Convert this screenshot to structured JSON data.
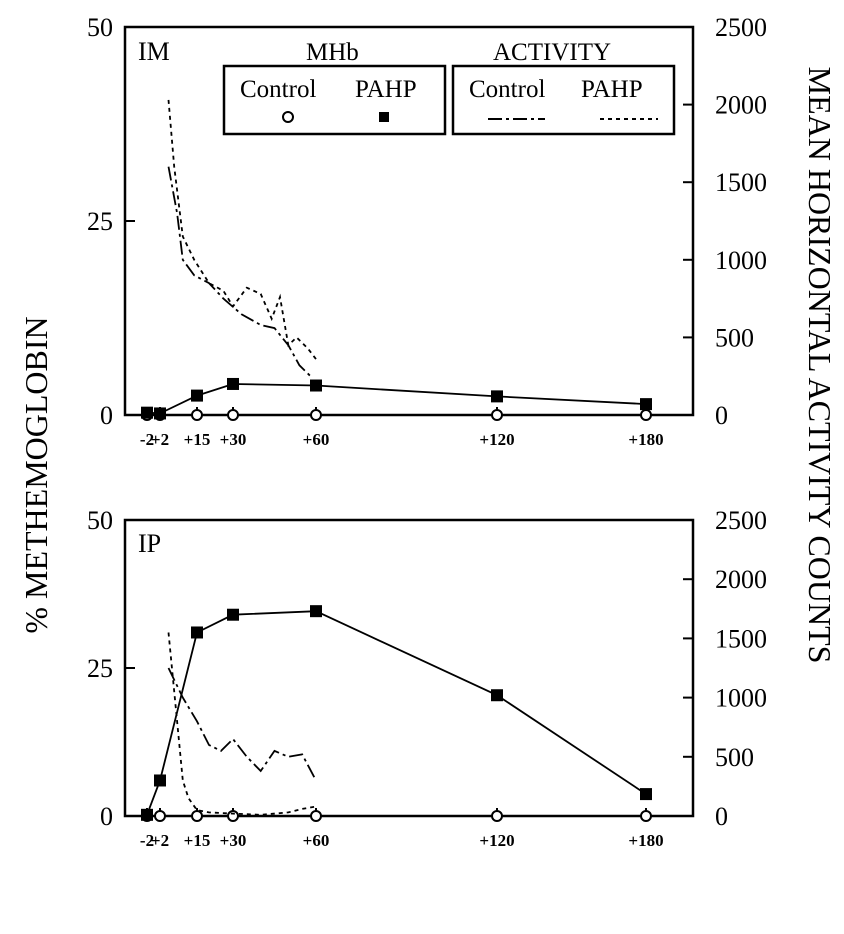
{
  "chart_data": [
    {
      "type": "line",
      "panel_label": "IM",
      "x_ticks": [
        "-2",
        "+2",
        "+15",
        "+30",
        "+60",
        "+120",
        "+180"
      ],
      "x_tick_values": [
        -2,
        2,
        15,
        30,
        60,
        120,
        180
      ],
      "y_left_ticks": [
        "0",
        "25",
        "50"
      ],
      "y_left_range": [
        0,
        50
      ],
      "y_right_ticks": [
        "0",
        "500",
        "1000",
        "1500",
        "2000",
        "2500"
      ],
      "y_right_range": [
        0,
        2500
      ],
      "series": [
        {
          "name": "Control",
          "group": "MHb",
          "axis": "left",
          "marker": "open-circle",
          "x": [
            -2,
            2,
            15,
            30,
            60,
            120,
            180
          ],
          "y": [
            0,
            0,
            0,
            0,
            0,
            0,
            0
          ]
        },
        {
          "name": "PAHP",
          "group": "MHb",
          "axis": "left",
          "marker": "filled-square",
          "x": [
            -2,
            2,
            15,
            30,
            60,
            120,
            180
          ],
          "y": [
            0.3,
            0.2,
            2.5,
            4.0,
            3.8,
            2.4,
            1.4
          ]
        },
        {
          "name": "Control",
          "group": "ACTIVITY",
          "axis": "right",
          "dash": "long-short",
          "x": [
            5,
            8,
            10,
            14,
            20,
            26,
            33,
            40,
            45,
            50,
            54,
            58
          ],
          "y": [
            1600,
            1300,
            1000,
            900,
            850,
            750,
            650,
            580,
            560,
            450,
            320,
            250
          ]
        },
        {
          "name": "PAHP",
          "group": "ACTIVITY",
          "axis": "right",
          "dash": "short",
          "x": [
            5,
            7,
            10,
            14,
            20,
            26,
            30,
            35,
            40,
            44,
            47,
            50,
            53,
            57,
            60
          ],
          "y": [
            2030,
            1600,
            1150,
            1000,
            850,
            800,
            700,
            820,
            780,
            620,
            760,
            450,
            500,
            430,
            360
          ]
        }
      ],
      "legend": {
        "groups": [
          {
            "title": "MHb",
            "entries": [
              "Control",
              "PAHP"
            ]
          },
          {
            "title": "ACTIVITY",
            "entries": [
              "Control",
              "PAHP"
            ]
          }
        ]
      }
    },
    {
      "type": "line",
      "panel_label": "IP",
      "x_ticks": [
        "-2",
        "+2",
        "+15",
        "+30",
        "+60",
        "+120",
        "+180"
      ],
      "x_tick_values": [
        -2,
        2,
        15,
        30,
        60,
        120,
        180
      ],
      "y_left_ticks": [
        "0",
        "25",
        "50"
      ],
      "y_left_range": [
        0,
        50
      ],
      "y_right_ticks": [
        "0",
        "500",
        "1000",
        "1500",
        "2000",
        "2500"
      ],
      "y_right_range": [
        0,
        2500
      ],
      "series": [
        {
          "name": "Control",
          "group": "MHb",
          "axis": "left",
          "marker": "open-circle",
          "x": [
            -2,
            2,
            15,
            30,
            60,
            120,
            180
          ],
          "y": [
            0,
            0,
            0,
            0,
            0,
            0,
            0
          ]
        },
        {
          "name": "PAHP",
          "group": "MHb",
          "axis": "left",
          "marker": "filled-square",
          "x": [
            -2,
            2,
            15,
            30,
            60,
            120,
            180
          ],
          "y": [
            0.2,
            6.0,
            31.0,
            34.0,
            34.6,
            20.4,
            3.7
          ]
        },
        {
          "name": "Control",
          "group": "ACTIVITY",
          "axis": "right",
          "dash": "long-short",
          "x": [
            5,
            10,
            15,
            20,
            25,
            30,
            35,
            40,
            45,
            50,
            55,
            60
          ],
          "y": [
            1250,
            1000,
            800,
            600,
            550,
            650,
            500,
            380,
            550,
            500,
            520,
            300
          ]
        },
        {
          "name": "PAHP",
          "group": "ACTIVITY",
          "axis": "right",
          "dash": "short",
          "x": [
            5,
            8,
            10,
            12,
            15,
            20,
            30,
            40,
            50,
            55,
            60
          ],
          "y": [
            1550,
            800,
            300,
            150,
            50,
            30,
            20,
            10,
            30,
            60,
            80
          ]
        }
      ]
    }
  ],
  "axes": {
    "y_left_title": "% METHEMOGLOBIN",
    "y_right_title": "MEAN HORIZONTAL ACTIVITY COUNTS"
  },
  "legend_text": {
    "mhb_title": "MHb",
    "activity_title": "ACTIVITY",
    "mhb_control": "Control",
    "mhb_pahp": "PAHP",
    "act_control": "Control",
    "act_pahp": "PAHP"
  }
}
